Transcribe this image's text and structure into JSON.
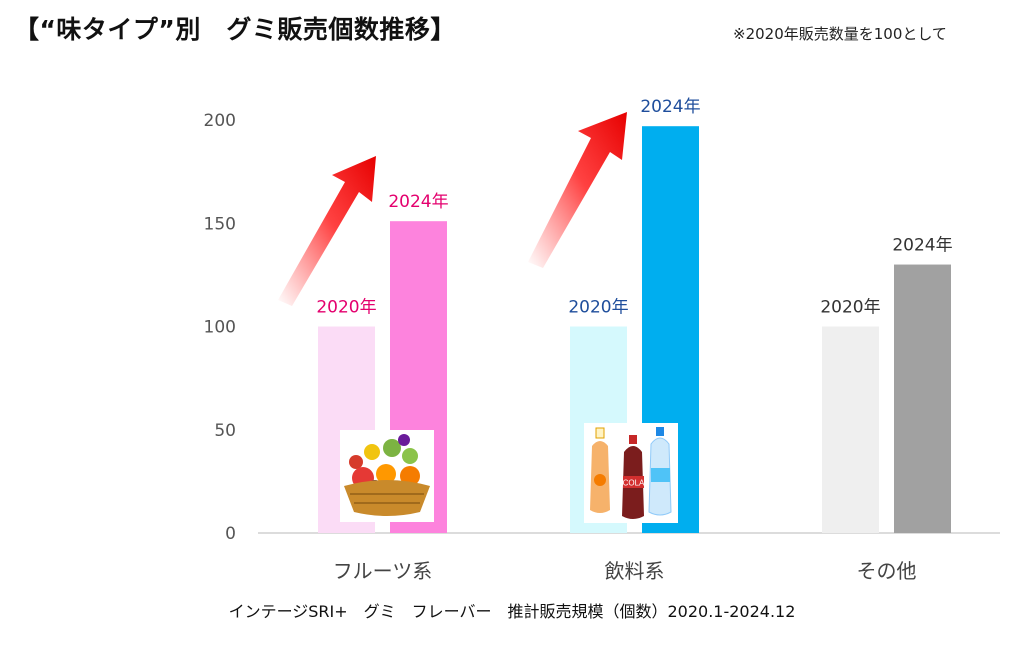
{
  "header": {
    "title": "【“味タイプ”別　グミ販売個数推移】",
    "note": "※2020年販売数量を100として"
  },
  "footer": {
    "source": "インテージSRI+　グミ　フレーバー　推計販売規模（個数）2020.1-2024.12"
  },
  "chart_data": {
    "type": "bar",
    "title": "【“味タイプ”別　グミ販売個数推移】",
    "categories": [
      "フルーツ系",
      "飲料系",
      "その他"
    ],
    "series": [
      {
        "name": "2020年",
        "values": [
          100,
          100,
          100
        ]
      },
      {
        "name": "2024年",
        "values": [
          151,
          197,
          130
        ]
      }
    ],
    "ylim": [
      0,
      200
    ],
    "yticks": [
      0,
      50,
      100,
      150,
      200
    ],
    "grid": false,
    "legend": "none",
    "colors": {
      "2020": [
        "#fbdcf6",
        "#d5f9fd",
        "#efefef"
      ],
      "2024": [
        "#fd83dd",
        "#00aeef",
        "#a1a1a1"
      ],
      "labels": [
        "#e4006e",
        "#1f4e9c",
        "#333333"
      ]
    },
    "icons": [
      "fruit-basket-icon",
      "drink-bottles-icon"
    ]
  }
}
